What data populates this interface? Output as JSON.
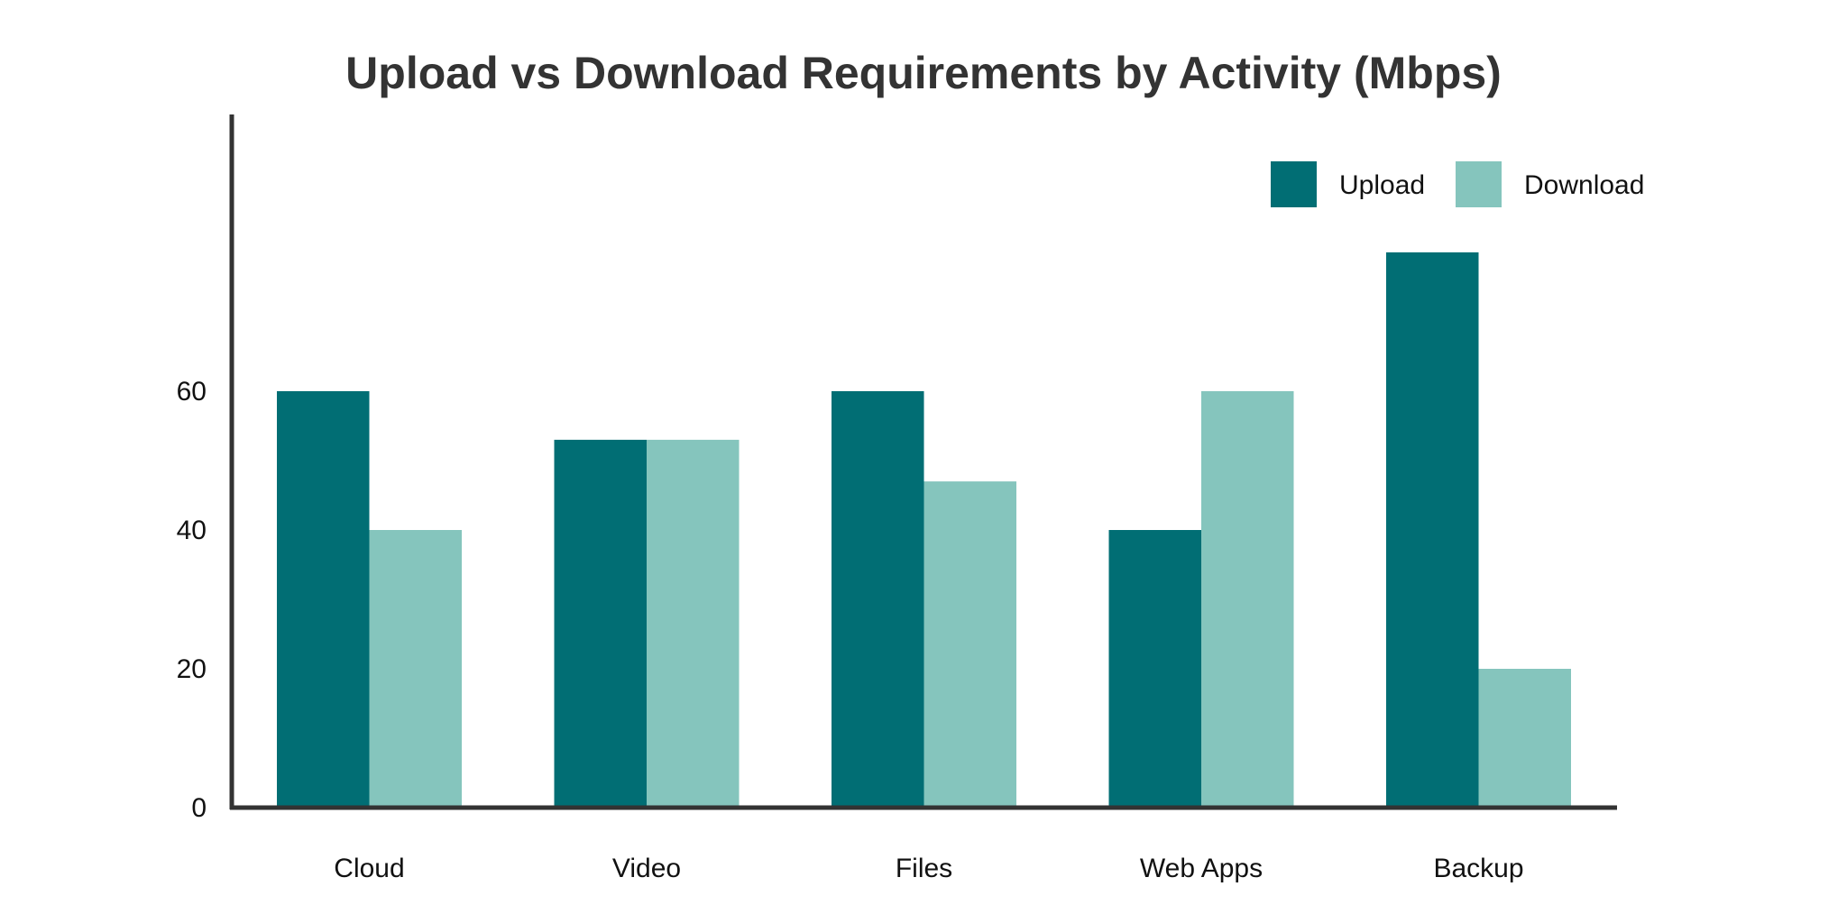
{
  "chart_data": {
    "type": "bar",
    "title": "Upload vs Download Requirements by Activity (Mbps)",
    "xlabel": "",
    "ylabel": "",
    "categories": [
      "Cloud",
      "Video",
      "Files",
      "Web Apps",
      "Backup"
    ],
    "series": [
      {
        "name": "Upload",
        "values": [
          60,
          53,
          60,
          40,
          80
        ],
        "color": "#016e74"
      },
      {
        "name": "Download",
        "values": [
          40,
          53,
          47,
          60,
          20
        ],
        "color": "#85c5bd"
      }
    ],
    "ylim": [
      0,
      100
    ],
    "yticks": [
      0,
      20,
      40,
      60
    ],
    "grid": false,
    "legend": "top-right",
    "axis_color": "#333333"
  }
}
